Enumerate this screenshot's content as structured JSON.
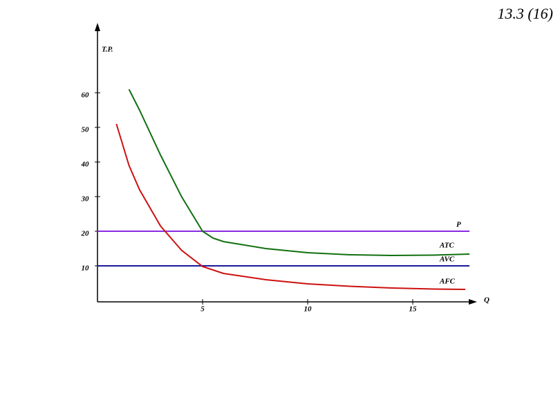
{
  "corner_label": "13.3 (16)",
  "chart_data": {
    "type": "line",
    "y_label": "T.P.",
    "x_label": "Q",
    "xlim": [
      0,
      18
    ],
    "ylim": [
      0,
      80
    ],
    "xticks": [
      5,
      10,
      15
    ],
    "yticks": [
      10,
      20,
      30,
      40,
      50,
      60
    ],
    "series": [
      {
        "name": "P",
        "color": "#8a2be2",
        "x": [
          0,
          17.7
        ],
        "values": [
          20,
          20
        ]
      },
      {
        "name": "ATC",
        "color": "#107010",
        "x": [
          1.5,
          2,
          3,
          4,
          5,
          5.5,
          6,
          8,
          10,
          12,
          14,
          16,
          17.7
        ],
        "values": [
          61,
          55,
          42,
          30,
          20,
          18,
          17,
          15,
          13.8,
          13.2,
          13,
          13.1,
          13.4
        ]
      },
      {
        "name": "AVC",
        "color": "#1a1a9c",
        "x": [
          0,
          17.7
        ],
        "values": [
          10,
          10
        ]
      },
      {
        "name": "AFC",
        "color": "#cc1010",
        "x": [
          0.9,
          1.5,
          2,
          3,
          4,
          5,
          6,
          8,
          10,
          12,
          14,
          16,
          17.5
        ],
        "values": [
          51,
          39,
          32,
          21.5,
          14.5,
          9.8,
          7.8,
          6,
          4.8,
          4.1,
          3.6,
          3.3,
          3.2
        ]
      }
    ]
  }
}
